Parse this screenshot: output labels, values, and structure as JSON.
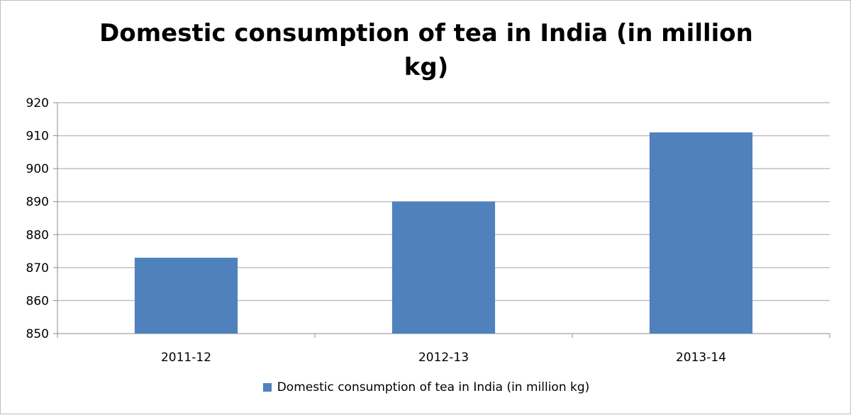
{
  "colors": {
    "bar": "#4f81bd",
    "gridline": "#c0c0c0",
    "axis": "#8c8c8c"
  },
  "chart_data": {
    "type": "bar",
    "title": "Domestic consumption of tea in India (in million kg)",
    "title_lines": [
      "Domestic consumption of tea in India (in million",
      "kg)"
    ],
    "categories": [
      "2011-12",
      "2012-13",
      "2013-14"
    ],
    "series": [
      {
        "name": "Domestic consumption of tea in India (in million kg)",
        "values": [
          873,
          890,
          911
        ]
      }
    ],
    "xlabel": "",
    "ylabel": "",
    "ylim": [
      850,
      920
    ],
    "yticks": [
      850,
      860,
      870,
      880,
      890,
      900,
      910,
      920
    ],
    "grid": true,
    "legend_position": "bottom"
  }
}
